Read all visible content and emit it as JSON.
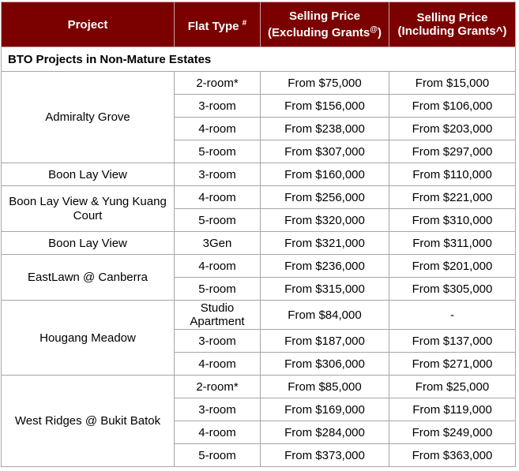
{
  "headers": {
    "project": "Project",
    "flat_type": "Flat Type",
    "flat_type_sup": "#",
    "excl": "Selling Price (Excluding Grants",
    "excl_sup": "@",
    "excl_end": ")",
    "incl": "Selling Price (Including Grants^)"
  },
  "section": "BTO Projects in Non-Mature Estates",
  "colors": {
    "header_bg": "#7b0000"
  },
  "projects": [
    {
      "name": "Admiralty Grove",
      "rows": [
        [
          "2-room*",
          "From $75,000",
          "From $15,000"
        ],
        [
          "3-room",
          "From $156,000",
          "From $106,000"
        ],
        [
          "4-room",
          "From $238,000",
          "From $203,000"
        ],
        [
          "5-room",
          "From $307,000",
          "From $297,000"
        ]
      ]
    },
    {
      "name": "Boon Lay View",
      "rows": [
        [
          "3-room",
          "From $160,000",
          "From $110,000"
        ]
      ]
    },
    {
      "name": "Boon Lay View & Yung Kuang Court",
      "rows": [
        [
          "4-room",
          "From $256,000",
          "From $221,000"
        ],
        [
          "5-room",
          "From $320,000",
          "From $310,000"
        ]
      ]
    },
    {
      "name": "Boon Lay View",
      "rows": [
        [
          "3Gen",
          "From $321,000",
          "From $311,000"
        ]
      ]
    },
    {
      "name": "EastLawn @ Canberra",
      "rows": [
        [
          "4-room",
          "From $236,000",
          "From $201,000"
        ],
        [
          "5-room",
          "From $315,000",
          "From $305,000"
        ]
      ]
    },
    {
      "name": "Hougang Meadow",
      "rows": [
        [
          "Studio Apartment",
          "From $84,000",
          "-"
        ],
        [
          "3-room",
          "From $187,000",
          "From $137,000"
        ],
        [
          "4-room",
          "From $306,000",
          "From $271,000"
        ]
      ]
    },
    {
      "name": "West Ridges @ Bukit Batok",
      "rows": [
        [
          "2-room*",
          "From $85,000",
          "From $25,000"
        ],
        [
          "3-room",
          "From $169,000",
          "From $119,000"
        ],
        [
          "4-room",
          "From $284,000",
          "From $249,000"
        ],
        [
          "5-room",
          "From $373,000",
          "From $363,000"
        ]
      ]
    }
  ]
}
